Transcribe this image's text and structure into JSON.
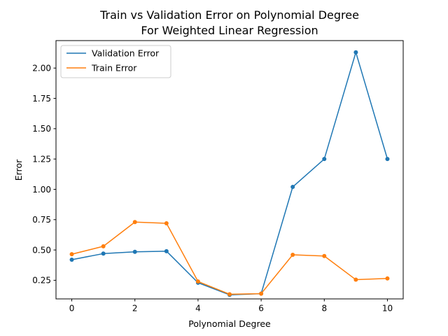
{
  "chart_data": {
    "type": "line",
    "title": [
      "Train vs Validation Error on Polynomial Degree",
      "For Weighted Linear Regression"
    ],
    "xlabel": "Polynomial Degree",
    "ylabel": "Error",
    "xlim": [
      -0.5,
      10.5
    ],
    "ylim": [
      0.0965,
      2.2265
    ],
    "xticks": [
      0,
      2,
      4,
      6,
      8,
      10
    ],
    "xtick_labels": [
      "0",
      "2",
      "4",
      "6",
      "8",
      "10"
    ],
    "yticks": [
      0.25,
      0.5,
      0.75,
      1.0,
      1.25,
      1.5,
      1.75,
      2.0
    ],
    "ytick_labels": [
      "0.25",
      "0.50",
      "0.75",
      "1.00",
      "1.25",
      "1.50",
      "1.75",
      "2.00"
    ],
    "grid": false,
    "legend_position": "upper-left",
    "x": [
      0,
      1,
      2,
      3,
      4,
      5,
      6,
      7,
      8,
      9,
      10
    ],
    "series": [
      {
        "name": "Validation Error",
        "color": "#1f77b4",
        "values": [
          0.42,
          0.47,
          0.485,
          0.49,
          0.23,
          0.13,
          0.14,
          1.02,
          1.25,
          2.13,
          1.25
        ]
      },
      {
        "name": "Train Error",
        "color": "#ff7f0e",
        "values": [
          0.465,
          0.53,
          0.73,
          0.72,
          0.24,
          0.135,
          0.14,
          0.46,
          0.45,
          0.255,
          0.265
        ]
      }
    ]
  }
}
